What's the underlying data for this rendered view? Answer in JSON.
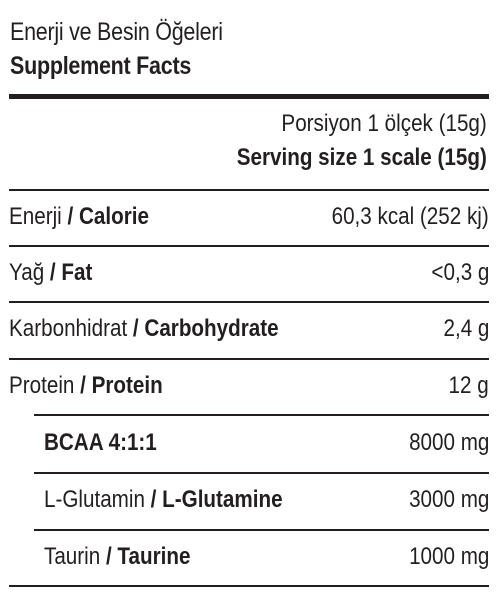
{
  "title": {
    "tr": "Enerji ve Besin Öğeleri",
    "en": "Supplement Facts"
  },
  "serving": {
    "tr": "Porsiyon 1 ölçek (15g)",
    "en": "Serving size 1 scale (15g)"
  },
  "rows": [
    {
      "tr": "Enerji",
      "sep": " / ",
      "en": "Calorie",
      "value": "60,3 kcal (252 kj)"
    },
    {
      "tr": "Yağ",
      "sep": " / ",
      "en": "Fat",
      "value": "<0,3 g"
    },
    {
      "tr": "Karbonhidrat",
      "sep": " / ",
      "en": "Carbohydrate",
      "value": "2,4 g"
    },
    {
      "tr": "Protein",
      "sep": " / ",
      "en": "Protein",
      "value": "12 g"
    },
    {
      "tr": "",
      "sep": "",
      "en": "BCAA 4:1:1",
      "value": "8000 mg"
    },
    {
      "tr": "L-Glutamin",
      "sep": " / ",
      "en": "L-Glutamine",
      "value": "3000 mg"
    },
    {
      "tr": "Taurin",
      "sep": " / ",
      "en": "Taurine",
      "value": "1000 mg"
    }
  ]
}
